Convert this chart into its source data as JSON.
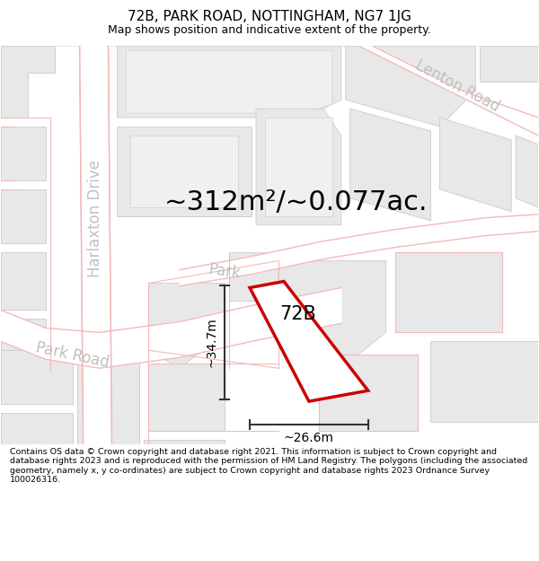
{
  "title": "72B, PARK ROAD, NOTTINGHAM, NG7 1JG",
  "subtitle": "Map shows position and indicative extent of the property.",
  "footer": "Contains OS data © Crown copyright and database right 2021. This information is subject to Crown copyright and database rights 2023 and is reproduced with the permission of HM Land Registry. The polygons (including the associated geometry, namely x, y co-ordinates) are subject to Crown copyright and database rights 2023 Ordnance Survey 100026316.",
  "area_label": "~312m²/~0.077ac.",
  "width_label": "~26.6m",
  "height_label": "~34.7m",
  "property_label": "72B",
  "map_bg": "#f8f8f8",
  "building_fill": "#e8e8e8",
  "building_stroke": "#d0d0d0",
  "road_line_color": "#f4b8b8",
  "highlight_poly_color": "#cc0000",
  "dim_line_color": "#333333",
  "road_label_color": "#c0c0c0",
  "title_fontsize": 11,
  "subtitle_fontsize": 9,
  "footer_fontsize": 6.8,
  "area_fontsize": 22,
  "dim_fontsize": 10,
  "property_fontsize": 15,
  "road_label_fontsize": 12
}
